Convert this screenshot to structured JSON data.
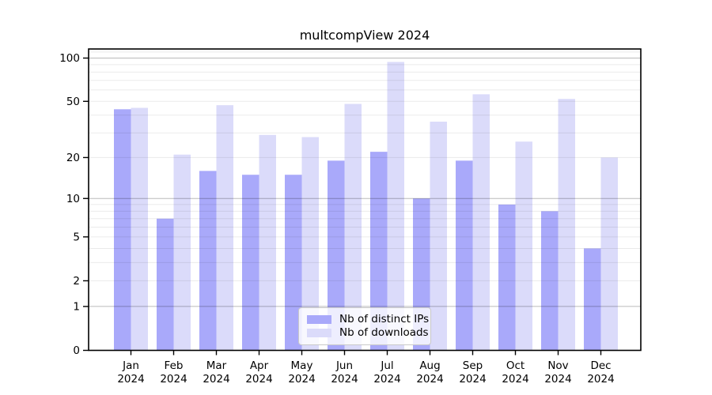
{
  "chart_data": {
    "type": "bar",
    "title": "multcompView 2024",
    "categories": [
      "Jan",
      "Feb",
      "Mar",
      "Apr",
      "May",
      "Jun",
      "Jul",
      "Aug",
      "Sep",
      "Oct",
      "Nov",
      "Dec"
    ],
    "year_label": "2024",
    "series": [
      {
        "name": "Nb of distinct IPs",
        "color": "#a9a9fa",
        "values": [
          44,
          7,
          16,
          15,
          15,
          19,
          22,
          10,
          19,
          9,
          8,
          4
        ]
      },
      {
        "name": "Nb of downloads",
        "color": "#dbdbfa",
        "values": [
          45,
          21,
          47,
          29,
          28,
          48,
          94,
          36,
          56,
          26,
          52,
          20
        ]
      }
    ],
    "yaxis": {
      "scale": "log10(value+1)",
      "tick_values": [
        0,
        1,
        2,
        5,
        10,
        20,
        50,
        100
      ],
      "major_gridlines": [
        1,
        10,
        100
      ],
      "minor_gridlines": [
        2,
        3,
        4,
        5,
        6,
        7,
        8,
        9,
        20,
        30,
        40,
        50,
        60,
        70,
        80,
        90,
        110
      ],
      "top_value": 115
    },
    "legend": {
      "position": "bottom-center-inside",
      "labels": [
        "Nb of distinct IPs",
        "Nb of downloads"
      ]
    },
    "grid": true
  },
  "colors": {
    "distinct_ips": "#a9a9fa",
    "downloads": "#dbdbfa",
    "grid_minor": "#eaeaea",
    "grid_major": "#c2c2c2",
    "frame": "#000000",
    "background": "#ffffff",
    "text": "#000000"
  }
}
